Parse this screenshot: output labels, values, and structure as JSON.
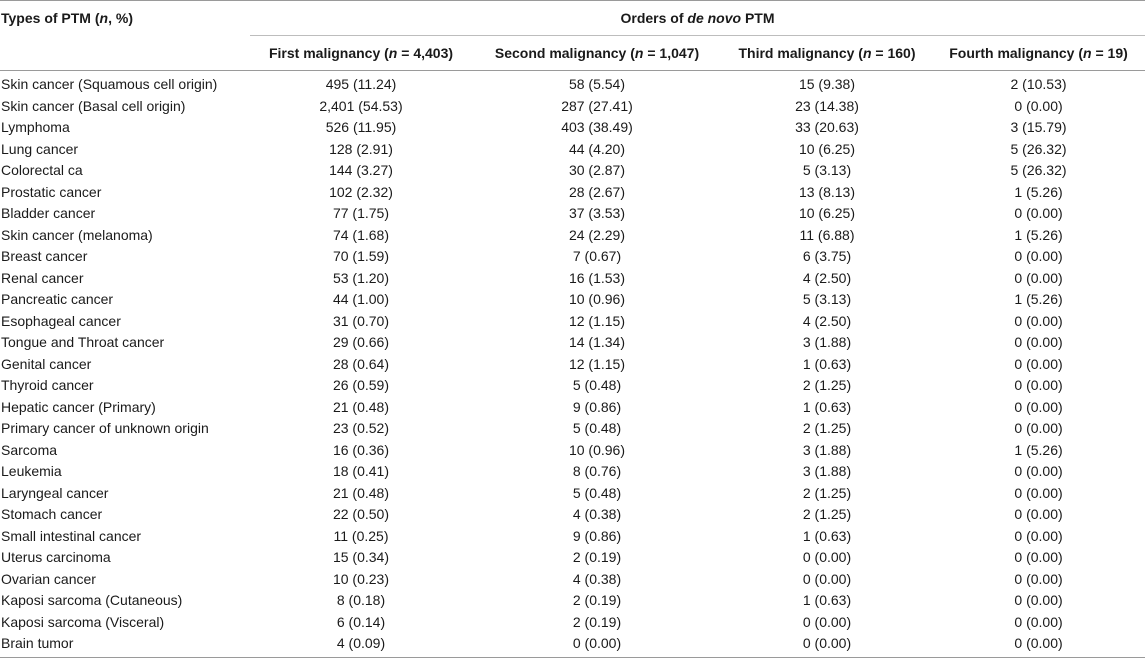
{
  "header": {
    "types_label_a": "Types of PTM (",
    "types_label_n": "n",
    "types_label_b": ", %)",
    "orders_label_a": "Orders of ",
    "orders_label_it": "de novo",
    "orders_label_b": " PTM",
    "columns": [
      {
        "prefix": "First malignancy (",
        "n": "n",
        "suffix": " = 4,403)"
      },
      {
        "prefix": "Second malignancy (",
        "n": "n",
        "suffix": " = 1,047)"
      },
      {
        "prefix": "Third malignancy (",
        "n": "n",
        "suffix": " = 160)"
      },
      {
        "prefix": "Fourth malignancy (",
        "n": "n",
        "suffix": " = 19)"
      }
    ]
  },
  "rows": [
    {
      "name": "Skin cancer (Squamous cell origin)",
      "v": [
        "495 (11.24)",
        "58 (5.54)",
        "15 (9.38)",
        "2 (10.53)"
      ]
    },
    {
      "name": "Skin cancer (Basal cell origin)",
      "v": [
        "2,401 (54.53)",
        "287 (27.41)",
        "23 (14.38)",
        "0 (0.00)"
      ]
    },
    {
      "name": "Lymphoma",
      "v": [
        "526 (11.95)",
        "403 (38.49)",
        "33 (20.63)",
        "3 (15.79)"
      ]
    },
    {
      "name": "Lung cancer",
      "v": [
        "128 (2.91)",
        "44 (4.20)",
        "10 (6.25)",
        "5 (26.32)"
      ]
    },
    {
      "name": "Colorectal ca",
      "v": [
        "144 (3.27)",
        "30 (2.87)",
        "5 (3.13)",
        "5 (26.32)"
      ]
    },
    {
      "name": "Prostatic cancer",
      "v": [
        "102 (2.32)",
        "28 (2.67)",
        "13 (8.13)",
        "1 (5.26)"
      ]
    },
    {
      "name": "Bladder cancer",
      "v": [
        "77 (1.75)",
        "37 (3.53)",
        "10 (6.25)",
        "0 (0.00)"
      ]
    },
    {
      "name": "Skin cancer (melanoma)",
      "v": [
        "74 (1.68)",
        "24 (2.29)",
        "11 (6.88)",
        "1 (5.26)"
      ]
    },
    {
      "name": "Breast cancer",
      "v": [
        "70 (1.59)",
        "7 (0.67)",
        "6 (3.75)",
        "0 (0.00)"
      ]
    },
    {
      "name": "Renal cancer",
      "v": [
        "53 (1.20)",
        "16 (1.53)",
        "4 (2.50)",
        "0 (0.00)"
      ]
    },
    {
      "name": "Pancreatic cancer",
      "v": [
        "44 (1.00)",
        "10 (0.96)",
        "5 (3.13)",
        "1 (5.26)"
      ]
    },
    {
      "name": "Esophageal cancer",
      "v": [
        "31 (0.70)",
        "12 (1.15)",
        "4 (2.50)",
        "0 (0.00)"
      ]
    },
    {
      "name": "Tongue and Throat cancer",
      "v": [
        "29 (0.66)",
        "14 (1.34)",
        "3 (1.88)",
        "0 (0.00)"
      ]
    },
    {
      "name": "Genital cancer",
      "v": [
        "28 (0.64)",
        "12 (1.15)",
        "1 (0.63)",
        "0 (0.00)"
      ]
    },
    {
      "name": "Thyroid cancer",
      "v": [
        "26 (0.59)",
        "5 (0.48)",
        "2 (1.25)",
        "0 (0.00)"
      ]
    },
    {
      "name": "Hepatic cancer (Primary)",
      "v": [
        "21 (0.48)",
        "9 (0.86)",
        "1 (0.63)",
        "0 (0.00)"
      ]
    },
    {
      "name": "Primary cancer of unknown origin",
      "v": [
        "23 (0.52)",
        "5 (0.48)",
        "2 (1.25)",
        "0 (0.00)"
      ]
    },
    {
      "name": "Sarcoma",
      "v": [
        "16 (0.36)",
        "10 (0.96)",
        "3 (1.88)",
        "1 (5.26)"
      ]
    },
    {
      "name": "Leukemia",
      "v": [
        "18 (0.41)",
        "8 (0.76)",
        "3 (1.88)",
        "0 (0.00)"
      ]
    },
    {
      "name": "Laryngeal cancer",
      "v": [
        "21 (0.48)",
        "5 (0.48)",
        "2 (1.25)",
        "0 (0.00)"
      ]
    },
    {
      "name": "Stomach cancer",
      "v": [
        "22 (0.50)",
        "4 (0.38)",
        "2 (1.25)",
        "0 (0.00)"
      ]
    },
    {
      "name": "Small intestinal cancer",
      "v": [
        "11 (0.25)",
        "9 (0.86)",
        "1 (0.63)",
        "0 (0.00)"
      ]
    },
    {
      "name": "Uterus carcinoma",
      "v": [
        "15 (0.34)",
        "2 (0.19)",
        "0 (0.00)",
        "0 (0.00)"
      ]
    },
    {
      "name": "Ovarian cancer",
      "v": [
        "10 (0.23)",
        "4 (0.38)",
        "0 (0.00)",
        "0 (0.00)"
      ]
    },
    {
      "name": "Kaposi sarcoma (Cutaneous)",
      "v": [
        "8 (0.18)",
        "2 (0.19)",
        "1 (0.63)",
        "0 (0.00)"
      ]
    },
    {
      "name": "Kaposi sarcoma (Visceral)",
      "v": [
        "6 (0.14)",
        "2 (0.19)",
        "0 (0.00)",
        "0 (0.00)"
      ]
    },
    {
      "name": "Brain tumor",
      "v": [
        "4 (0.09)",
        "0 (0.00)",
        "0 (0.00)",
        "0 (0.00)"
      ]
    }
  ]
}
